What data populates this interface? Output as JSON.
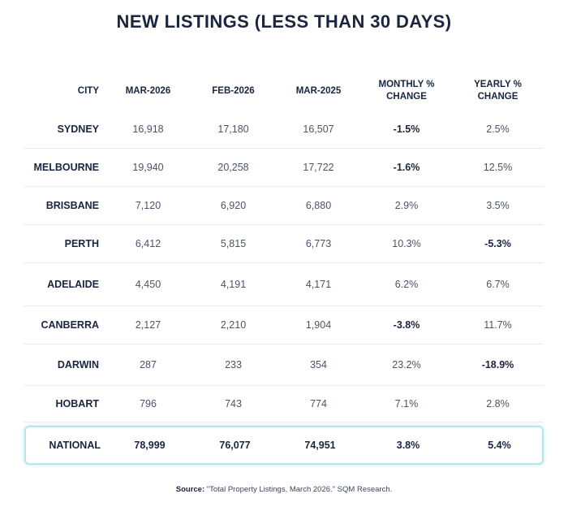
{
  "title": "NEW LISTINGS (LESS THAN 30 DAYS)",
  "columns": {
    "city": "CITY",
    "mar2026": "MAR-2026",
    "feb2026": "FEB-2026",
    "mar2025": "MAR-2025",
    "monthly_line1": "MONTHLY %",
    "monthly_line2": "CHANGE",
    "yearly_line1": "YEARLY %",
    "yearly_line2": "CHANGE"
  },
  "rows": [
    {
      "city": "SYDNEY",
      "mar2026": "16,918",
      "feb2026": "17,180",
      "mar2025": "16,507",
      "monthly": "-1.5%",
      "yearly": "2.5%"
    },
    {
      "city": "MELBOURNE",
      "mar2026": "19,940",
      "feb2026": "20,258",
      "mar2025": "17,722",
      "monthly": "-1.6%",
      "yearly": "12.5%"
    },
    {
      "city": "BRISBANE",
      "mar2026": "7,120",
      "feb2026": "6,920",
      "mar2025": "6,880",
      "monthly": "2.9%",
      "yearly": "3.5%"
    },
    {
      "city": "PERTH",
      "mar2026": "6,412",
      "feb2026": "5,815",
      "mar2025": "6,773",
      "monthly": "10.3%",
      "yearly": "-5.3%"
    },
    {
      "city": "ADELAIDE",
      "mar2026": "4,450",
      "feb2026": "4,191",
      "mar2025": "4,171",
      "monthly": "6.2%",
      "yearly": "6.7%"
    },
    {
      "city": "CANBERRA",
      "mar2026": "2,127",
      "feb2026": "2,210",
      "mar2025": "1,904",
      "monthly": "-3.8%",
      "yearly": "11.7%"
    },
    {
      "city": "DARWIN",
      "mar2026": "287",
      "feb2026": "233",
      "mar2025": "354",
      "monthly": "23.2%",
      "yearly": "-18.9%"
    },
    {
      "city": "HOBART",
      "mar2026": "796",
      "feb2026": "743",
      "mar2025": "774",
      "monthly": "7.1%",
      "yearly": "2.8%"
    }
  ],
  "national": {
    "city": "NATIONAL",
    "mar2026": "78,999",
    "feb2026": "76,077",
    "mar2025": "74,951",
    "monthly": "3.8%",
    "yearly": "5.4%"
  },
  "source": {
    "label": "Source:",
    "text": "\"Total Property Listings, March 2026.\" SQM Research."
  }
}
